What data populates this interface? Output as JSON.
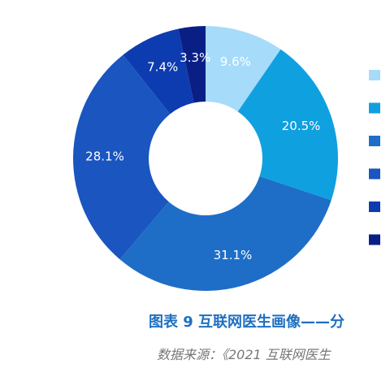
{
  "chart_data": {
    "type": "donut",
    "title": "图表 9 互联网医生画像——分",
    "source": "数据来源：《2021 互联网医生",
    "values": [
      9.6,
      20.5,
      31.1,
      28.1,
      7.4,
      3.3
    ],
    "value_labels": [
      "9.6%",
      "20.5%",
      "31.1%",
      "28.1%",
      "7.4%",
      "3.3%"
    ],
    "colors": [
      "#a6dbfa",
      "#0fa0e0",
      "#1e6ec8",
      "#1a55c0",
      "#0d3bb0",
      "#0a1f86"
    ]
  }
}
